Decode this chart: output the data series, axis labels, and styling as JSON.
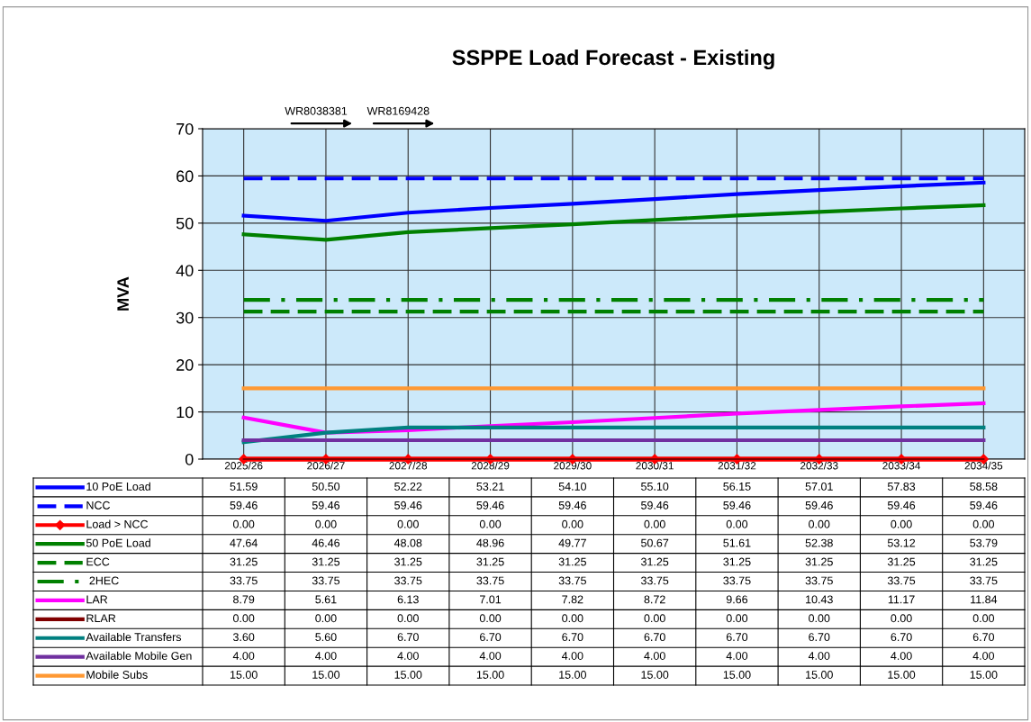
{
  "chart_data": {
    "type": "line",
    "title": "SSPPE Load Forecast - Existing",
    "ylabel": "MVA",
    "categories": [
      "2025/26",
      "2026/27",
      "2027/28",
      "2028/29",
      "2029/30",
      "2030/31",
      "2031/32",
      "2032/33",
      "2033/34",
      "2034/35"
    ],
    "ylim": [
      0,
      70
    ],
    "yticks": [
      0,
      10,
      20,
      30,
      40,
      50,
      60,
      70
    ],
    "grid": true,
    "legend": "bottom left",
    "annotations": [
      "WR8038381",
      "WR8169428"
    ],
    "series": [
      {
        "name": "10 PoE Load",
        "color": "#0000ff",
        "line_style": "solid",
        "values": [
          51.59,
          50.5,
          52.22,
          53.21,
          54.1,
          55.1,
          56.15,
          57.01,
          57.83,
          58.58
        ],
        "value_labels": [
          "51.59",
          "50.50",
          "52.22",
          "53.21",
          "54.10",
          "55.10",
          "56.15",
          "57.01",
          "57.83",
          "58.58"
        ]
      },
      {
        "name": "NCC",
        "color": "#0000ff",
        "line_style": "dashed",
        "values": [
          59.46,
          59.46,
          59.46,
          59.46,
          59.46,
          59.46,
          59.46,
          59.46,
          59.46,
          59.46
        ],
        "value_labels": [
          "59.46",
          "59.46",
          "59.46",
          "59.46",
          "59.46",
          "59.46",
          "59.46",
          "59.46",
          "59.46",
          "59.46"
        ]
      },
      {
        "name": "Load > NCC",
        "color": "#ff0000",
        "line_style": "solid",
        "marker": "diamond",
        "values": [
          0,
          0,
          0,
          0,
          0,
          0,
          0,
          0,
          0,
          0
        ],
        "value_labels": [
          "0.00",
          "0.00",
          "0.00",
          "0.00",
          "0.00",
          "0.00",
          "0.00",
          "0.00",
          "0.00",
          "0.00"
        ]
      },
      {
        "name": "50 PoE Load",
        "color": "#008000",
        "line_style": "solid",
        "values": [
          47.64,
          46.46,
          48.08,
          48.96,
          49.77,
          50.67,
          51.61,
          52.38,
          53.12,
          53.79
        ],
        "value_labels": [
          "47.64",
          "46.46",
          "48.08",
          "48.96",
          "49.77",
          "50.67",
          "51.61",
          "52.38",
          "53.12",
          "53.79"
        ]
      },
      {
        "name": "ECC",
        "color": "#008000",
        "line_style": "dashed",
        "values": [
          31.25,
          31.25,
          31.25,
          31.25,
          31.25,
          31.25,
          31.25,
          31.25,
          31.25,
          31.25
        ],
        "value_labels": [
          "31.25",
          "31.25",
          "31.25",
          "31.25",
          "31.25",
          "31.25",
          "31.25",
          "31.25",
          "31.25",
          "31.25"
        ]
      },
      {
        "name": " 2HEC",
        "color": "#008000",
        "line_style": "dashdot",
        "values": [
          33.75,
          33.75,
          33.75,
          33.75,
          33.75,
          33.75,
          33.75,
          33.75,
          33.75,
          33.75
        ],
        "value_labels": [
          "33.75",
          "33.75",
          "33.75",
          "33.75",
          "33.75",
          "33.75",
          "33.75",
          "33.75",
          "33.75",
          "33.75"
        ]
      },
      {
        "name": "LAR",
        "color": "#ff00ff",
        "line_style": "solid",
        "values": [
          8.79,
          5.61,
          6.13,
          7.01,
          7.82,
          8.72,
          9.66,
          10.43,
          11.17,
          11.84
        ],
        "value_labels": [
          "8.79",
          "5.61",
          "6.13",
          "7.01",
          "7.82",
          "8.72",
          "9.66",
          "10.43",
          "11.17",
          "11.84"
        ]
      },
      {
        "name": "RLAR",
        "color": "#800000",
        "line_style": "solid",
        "values": [
          0,
          0,
          0,
          0,
          0,
          0,
          0,
          0,
          0,
          0
        ],
        "value_labels": [
          "0.00",
          "0.00",
          "0.00",
          "0.00",
          "0.00",
          "0.00",
          "0.00",
          "0.00",
          "0.00",
          "0.00"
        ]
      },
      {
        "name": "Available Transfers",
        "color": "#008080",
        "line_style": "solid",
        "values": [
          3.6,
          5.6,
          6.7,
          6.7,
          6.7,
          6.7,
          6.7,
          6.7,
          6.7,
          6.7
        ],
        "value_labels": [
          "3.60",
          "5.60",
          "6.70",
          "6.70",
          "6.70",
          "6.70",
          "6.70",
          "6.70",
          "6.70",
          "6.70"
        ]
      },
      {
        "name": "Available Mobile Gen",
        "color": "#7030a0",
        "line_style": "solid",
        "values": [
          4,
          4,
          4,
          4,
          4,
          4,
          4,
          4,
          4,
          4
        ],
        "value_labels": [
          "4.00",
          "4.00",
          "4.00",
          "4.00",
          "4.00",
          "4.00",
          "4.00",
          "4.00",
          "4.00",
          "4.00"
        ]
      },
      {
        "name": "Mobile Subs",
        "color": "#ff9933",
        "line_style": "solid",
        "values": [
          15,
          15,
          15,
          15,
          15,
          15,
          15,
          15,
          15,
          15
        ],
        "value_labels": [
          "15.00",
          "15.00",
          "15.00",
          "15.00",
          "15.00",
          "15.00",
          "15.00",
          "15.00",
          "15.00",
          "15.00"
        ]
      }
    ]
  }
}
